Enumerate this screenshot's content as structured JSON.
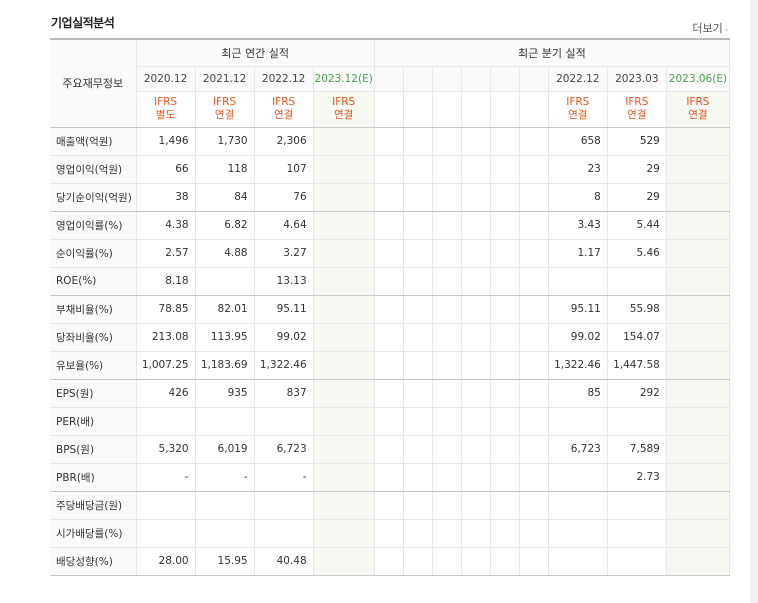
{
  "section_title": "기업실적분석",
  "more_label": "더보기",
  "more_arrow": "›",
  "table": {
    "corner_label": "주요재무정보",
    "annual_header": "최근 연간 실적",
    "quarter_header": "최근 분기 실적",
    "annual_periods": [
      "2020.12",
      "2021.12",
      "2022.12",
      "2023.12(E)"
    ],
    "quarter_periods": [
      "",
      "",
      "",
      "",
      "2022.12",
      "2023.03",
      "2023.06(E)"
    ],
    "annual_std": [
      [
        "IFRS",
        "별도"
      ],
      [
        "IFRS",
        "연결"
      ],
      [
        "IFRS",
        "연결"
      ],
      [
        "IFRS",
        "연결"
      ]
    ],
    "quarter_std": [
      [
        "",
        ""
      ],
      [
        "",
        ""
      ],
      [
        "",
        ""
      ],
      [
        "",
        ""
      ],
      [
        "IFRS",
        "연결"
      ],
      [
        "IFRS",
        "연결"
      ],
      [
        "IFRS",
        "연결"
      ]
    ],
    "rows": [
      {
        "label": "매출액(억원)",
        "annual": [
          "1,496",
          "1,730",
          "2,306",
          ""
        ],
        "quarter": [
          "",
          "",
          "",
          "",
          "658",
          "529",
          ""
        ]
      },
      {
        "label": "영업이익(억원)",
        "annual": [
          "66",
          "118",
          "107",
          ""
        ],
        "quarter": [
          "",
          "",
          "",
          "",
          "23",
          "29",
          ""
        ]
      },
      {
        "label": "당기순이익(억원)",
        "annual": [
          "38",
          "84",
          "76",
          ""
        ],
        "quarter": [
          "",
          "",
          "",
          "",
          "8",
          "29",
          ""
        ]
      },
      {
        "label": "영업이익률(%)",
        "annual": [
          "4.38",
          "6.82",
          "4.64",
          ""
        ],
        "quarter": [
          "",
          "",
          "",
          "",
          "3.43",
          "5.44",
          ""
        ]
      },
      {
        "label": "순이익률(%)",
        "annual": [
          "2.57",
          "4.88",
          "3.27",
          ""
        ],
        "quarter": [
          "",
          "",
          "",
          "",
          "1.17",
          "5.46",
          ""
        ]
      },
      {
        "label": "ROE(%)",
        "annual": [
          "8.18",
          "",
          "13.13",
          ""
        ],
        "quarter": [
          "",
          "",
          "",
          "",
          "",
          "",
          ""
        ]
      },
      {
        "label": "부채비율(%)",
        "annual": [
          "78.85",
          "82.01",
          "95.11",
          ""
        ],
        "quarter": [
          "",
          "",
          "",
          "",
          "95.11",
          "55.98",
          ""
        ]
      },
      {
        "label": "당좌비율(%)",
        "annual": [
          "213.08",
          "113.95",
          "99.02",
          ""
        ],
        "quarter": [
          "",
          "",
          "",
          "",
          "99.02",
          "154.07",
          ""
        ]
      },
      {
        "label": "유보율(%)",
        "annual": [
          "1,007.25",
          "1,183.69",
          "1,322.46",
          ""
        ],
        "quarter": [
          "",
          "",
          "",
          "",
          "1,322.46",
          "1,447.58",
          ""
        ]
      },
      {
        "label": "EPS(원)",
        "annual": [
          "426",
          "935",
          "837",
          ""
        ],
        "quarter": [
          "",
          "",
          "",
          "",
          "85",
          "292",
          ""
        ]
      },
      {
        "label": "PER(배)",
        "annual": [
          "",
          "",
          "",
          ""
        ],
        "quarter": [
          "",
          "",
          "",
          "",
          "",
          "",
          ""
        ]
      },
      {
        "label": "BPS(원)",
        "annual": [
          "5,320",
          "6,019",
          "6,723",
          ""
        ],
        "quarter": [
          "",
          "",
          "",
          "",
          "6,723",
          "7,589",
          ""
        ]
      },
      {
        "label": "PBR(배)",
        "annual": [
          "-",
          "-",
          "-",
          ""
        ],
        "quarter": [
          "",
          "",
          "",
          "",
          "",
          "2.73",
          ""
        ]
      },
      {
        "label": "주당배당금(원)",
        "annual": [
          "",
          "",
          "",
          ""
        ],
        "quarter": [
          "",
          "",
          "",
          "",
          "",
          "",
          ""
        ]
      },
      {
        "label": "시가배당률(%)",
        "annual": [
          "",
          "",
          "",
          ""
        ],
        "quarter": [
          "",
          "",
          "",
          "",
          "",
          "",
          ""
        ]
      },
      {
        "label": "배당성향(%)",
        "annual": [
          "28.00",
          "15.95",
          "40.48",
          ""
        ],
        "quarter": [
          "",
          "",
          "",
          "",
          "",
          "",
          ""
        ]
      }
    ]
  }
}
